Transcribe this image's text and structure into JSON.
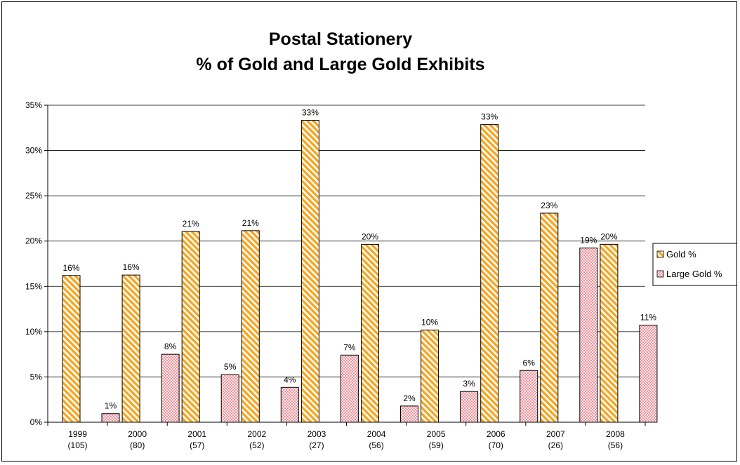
{
  "chart_data": {
    "type": "bar",
    "title": "Postal Stationery",
    "subtitle": "% of Gold and Large Gold Exhibits",
    "xlabel": "",
    "ylabel": "",
    "categories": [
      "1999",
      "2000",
      "2001",
      "2002",
      "2003",
      "2004",
      "2005",
      "2006",
      "2007",
      "2008"
    ],
    "category_sublabels": [
      "(105)",
      "(80)",
      "(57)",
      "(52)",
      "(27)",
      "(56)",
      "(59)",
      "(70)",
      "(26)",
      "(56)"
    ],
    "series": [
      {
        "name": "Gold %",
        "values": [
          16.2,
          16.25,
          21.05,
          21.15,
          33.33,
          19.64,
          10.17,
          32.86,
          23.08,
          19.64
        ],
        "labels": [
          "16%",
          "16%",
          "21%",
          "21%",
          "33%",
          "20%",
          "10%",
          "33%",
          "23%",
          "20%"
        ],
        "color": "#f5a623",
        "pattern": "diagonal-stripes"
      },
      {
        "name": "Large Gold %",
        "values": [
          0.95,
          7.5,
          5.26,
          3.85,
          7.41,
          1.79,
          3.39,
          5.71,
          19.23,
          10.71
        ],
        "labels": [
          "1%",
          "8%",
          "5%",
          "4%",
          "7%",
          "2%",
          "3%",
          "6%",
          "19%",
          "11%"
        ],
        "color": "#f08080",
        "pattern": "dots"
      }
    ],
    "ylim": [
      0,
      35
    ],
    "yticks": [
      "0%",
      "5%",
      "10%",
      "15%",
      "20%",
      "25%",
      "30%",
      "35%"
    ],
    "grid": true,
    "legend_position": "right"
  }
}
